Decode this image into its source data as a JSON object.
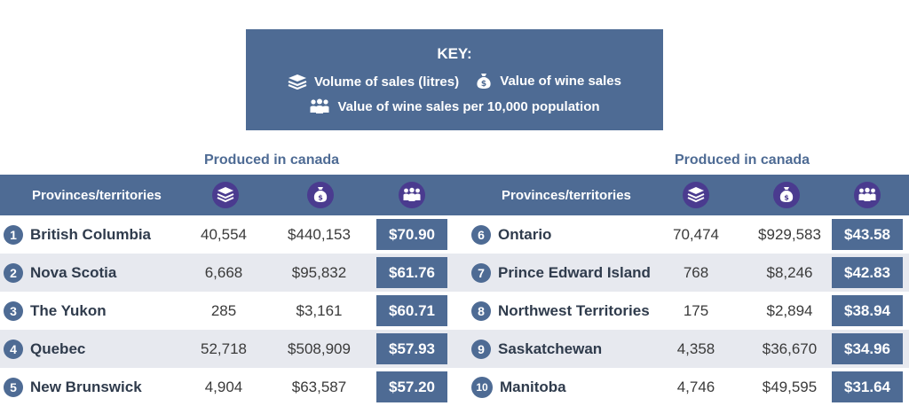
{
  "key": {
    "title": "KEY:",
    "volume_label": "Volume of sales (litres)",
    "value_label": "Value of wine sales",
    "per_capita_label": "Value of wine sales per 10,000 population"
  },
  "left_table": {
    "caption": "Produced in canada",
    "column_header": "Provinces/territories"
  },
  "right_table": {
    "caption": "Produced in canada",
    "column_header": "Provinces/territories"
  },
  "icons": {
    "volume": "layers-stack-icon",
    "value": "money-bag-icon",
    "per_capita": "people-group-icon"
  },
  "colors": {
    "accent": "#4e6b94",
    "alt_row": "#e7e9ef",
    "text": "#3a3a3a"
  },
  "chart_data": {
    "type": "table",
    "columns": [
      "Provinces/territories",
      "Volume of sales (litres)",
      "Value of wine sales",
      "Value of wine sales per 10,000 population"
    ],
    "rows": [
      {
        "rank": "1",
        "province": "British Columbia",
        "volume": "40,554",
        "value": "$440,153",
        "per_capita": "$70.90"
      },
      {
        "rank": "2",
        "province": "Nova Scotia",
        "volume": "6,668",
        "value": "$95,832",
        "per_capita": "$61.76"
      },
      {
        "rank": "3",
        "province": "The Yukon",
        "volume": "285",
        "value": "$3,161",
        "per_capita": "$60.71"
      },
      {
        "rank": "4",
        "province": "Quebec",
        "volume": "52,718",
        "value": "$508,909",
        "per_capita": "$57.93"
      },
      {
        "rank": "5",
        "province": "New Brunswick",
        "volume": "4,904",
        "value": "$63,587",
        "per_capita": "$57.20"
      },
      {
        "rank": "6",
        "province": "Ontario",
        "volume": "70,474",
        "value": "$929,583",
        "per_capita": "$43.58"
      },
      {
        "rank": "7",
        "province": "Prince Edward Island",
        "volume": "768",
        "value": "$8,246",
        "per_capita": "$42.83"
      },
      {
        "rank": "8",
        "province": "Northwest Territories",
        "volume": "175",
        "value": "$2,894",
        "per_capita": "$38.94"
      },
      {
        "rank": "9",
        "province": "Saskatchewan",
        "volume": "4,358",
        "value": "$36,670",
        "per_capita": "$34.96"
      },
      {
        "rank": "10",
        "province": "Manitoba",
        "volume": "4,746",
        "value": "$49,595",
        "per_capita": "$31.64"
      }
    ]
  }
}
